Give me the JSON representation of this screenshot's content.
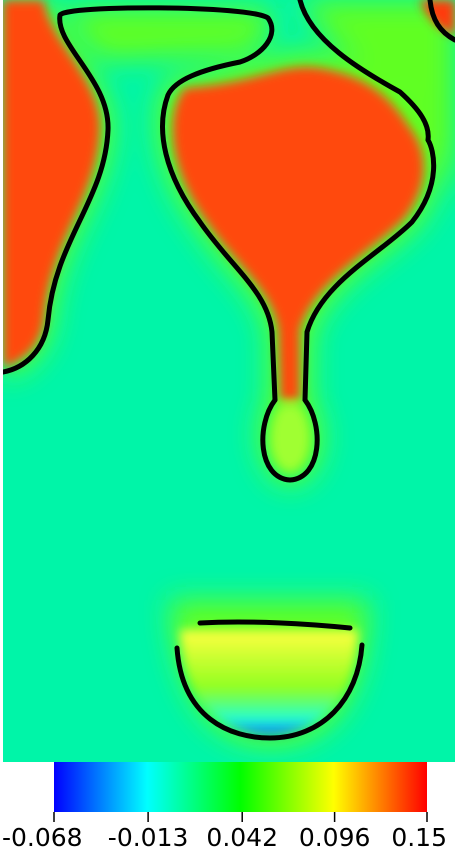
{
  "colorbar": {
    "range": [
      -0.068,
      0.15
    ],
    "ticks": [
      -0.068,
      -0.013,
      0.042,
      0.096,
      0.15
    ],
    "colors": [
      "#0000ff",
      "#00ffff",
      "#00ff00",
      "#ffff00",
      "#ff0000"
    ]
  }
}
